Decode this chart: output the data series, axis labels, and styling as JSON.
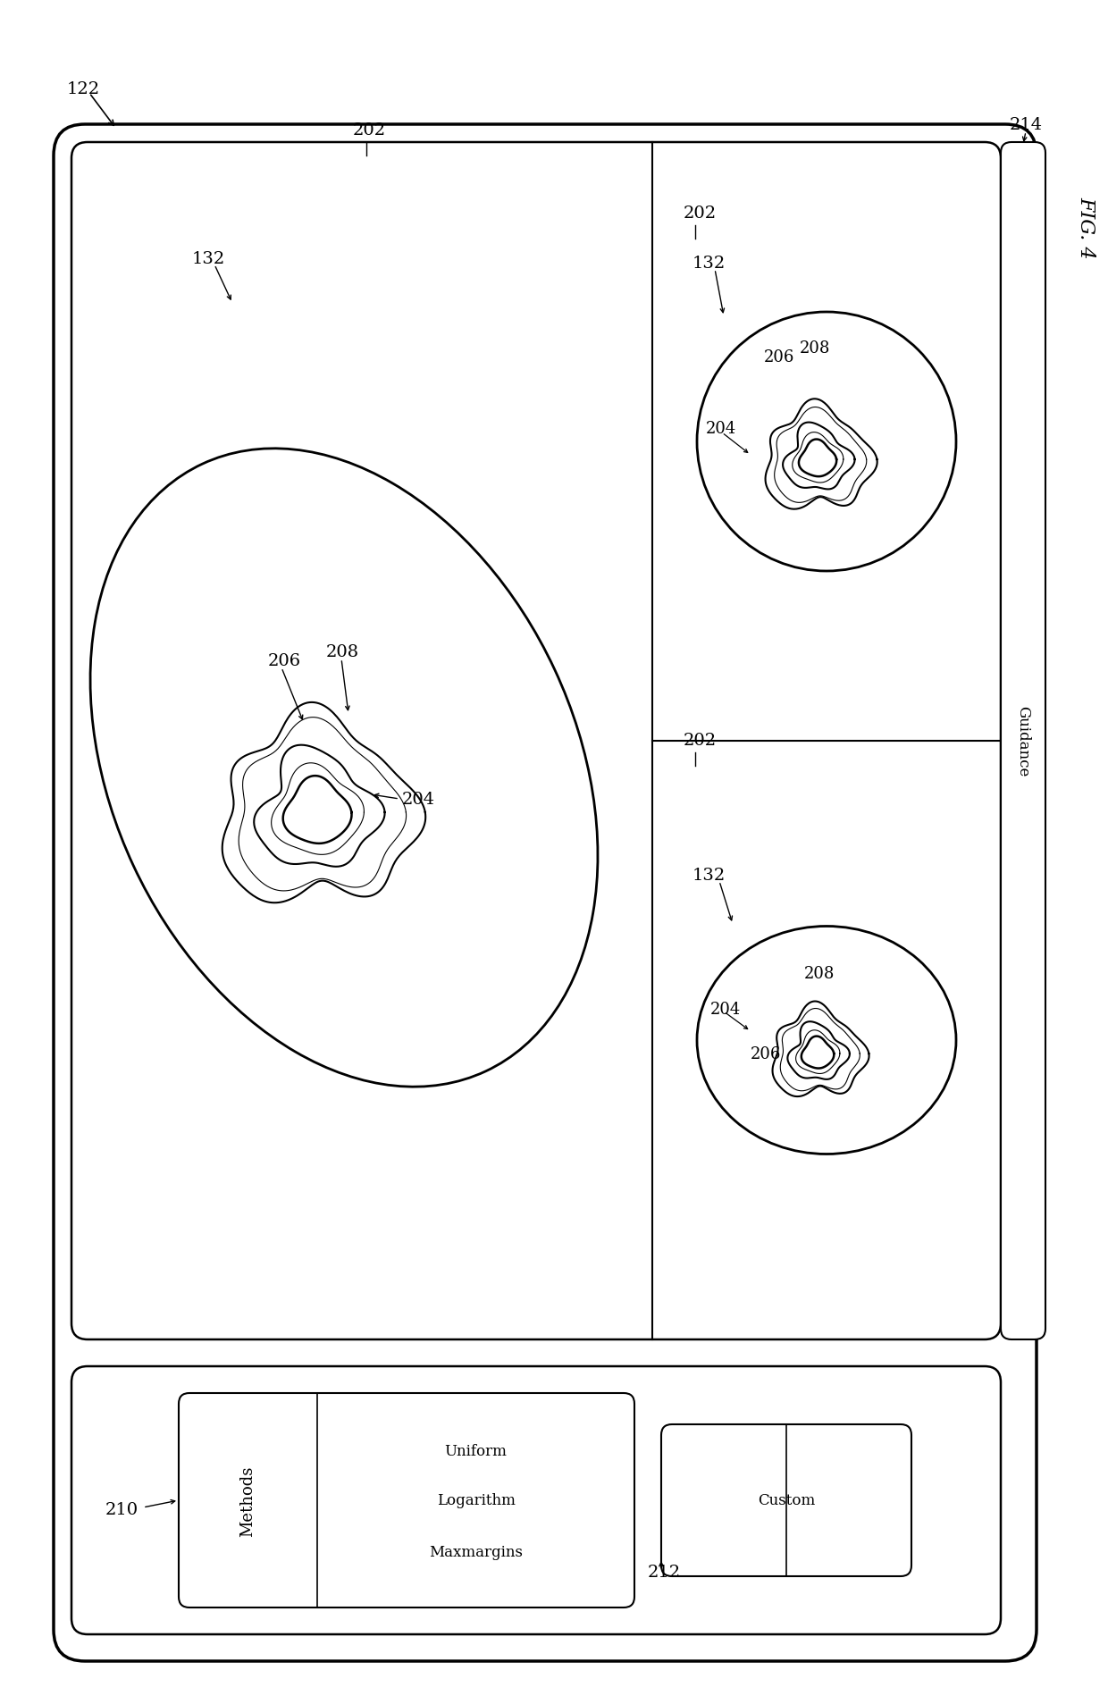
{
  "fig_width": 12.4,
  "fig_height": 19.08,
  "bg_color": "#ffffff",
  "fig_label": "FIG. 4",
  "ref_122": "122",
  "ref_202_main": "202",
  "ref_202_tr": "202",
  "ref_202_br": "202",
  "ref_132_main": "132",
  "ref_132_tr": "132",
  "ref_132_br": "132",
  "ref_204": "204",
  "ref_204_tr": "204",
  "ref_204_br": "204",
  "ref_206": "206",
  "ref_206_tr": "206",
  "ref_206_br": "206",
  "ref_208": "208",
  "ref_208_tr": "208",
  "ref_208_br": "208",
  "ref_210": "210",
  "ref_212": "212",
  "ref_214": "214",
  "methods_text": "Methods",
  "uniform_text": "Uniform",
  "logarithm_text": "Logarithm",
  "maxmargins_text": "Maxmargins",
  "custom_text": "Custom",
  "guidance_text": "Guidance"
}
